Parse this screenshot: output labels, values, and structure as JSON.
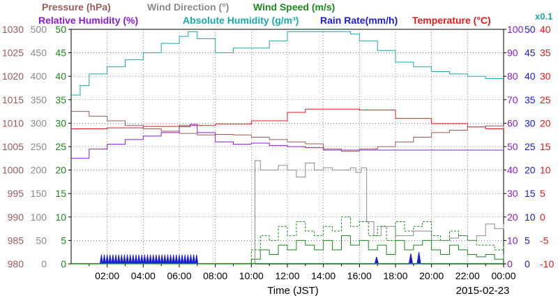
{
  "chart_data": {
    "type": "line",
    "date": "2015-02-23",
    "xlabel": "Time (JST)",
    "x_ticks": [
      "02:00",
      "04:00",
      "06:00",
      "08:00",
      "10:00",
      "12:00",
      "14:00",
      "16:00",
      "18:00",
      "20:00",
      "22:00",
      "00:00"
    ],
    "xlim_hours": [
      0,
      24
    ],
    "grid": true,
    "multiplier_note": "x0.1",
    "legend": [
      {
        "label": "Pressure (hPa)",
        "color": "#9b5a5a"
      },
      {
        "label": "Wind Direction (°)",
        "color": "#8a8a8a"
      },
      {
        "label": "Wind Speed (m/s)",
        "color": "#1a8a1a"
      },
      {
        "label": "Relative Humidity (%)",
        "color": "#8a1ad8"
      },
      {
        "label": "Absolute Humidity (g/m³)",
        "color": "#1aa8a8"
      },
      {
        "label": "Rain Rate(mm/h)",
        "color": "#1a1ad8"
      },
      {
        "label": "Temperature (°C)",
        "color": "#e01a1a"
      }
    ],
    "axes": {
      "pressure": {
        "color": "#9b5a5a",
        "range": [
          980,
          1030
        ],
        "ticks": [
          "1030",
          "1025",
          "1020",
          "1015",
          "1010",
          "1005",
          "1000",
          "995",
          "990",
          "985",
          "980"
        ]
      },
      "direction": {
        "color": "#8a8a8a",
        "range": [
          0,
          500
        ],
        "ticks": [
          "500",
          "450",
          "400",
          "350",
          "300",
          "250",
          "200",
          "150",
          "100",
          "50",
          "0"
        ]
      },
      "speed": {
        "color": "#1a8a1a",
        "range": [
          0,
          50
        ],
        "ticks": [
          "50",
          "45",
          "40",
          "35",
          "30",
          "25",
          "20",
          "15",
          "10",
          "5",
          "0"
        ]
      },
      "rel_humidity": {
        "color": "#8a1ad8",
        "range": [
          0,
          100
        ],
        "ticks": [
          "100",
          "90",
          "80",
          "70",
          "60",
          "50",
          "40",
          "30",
          "20",
          "10",
          "0"
        ]
      },
      "rain": {
        "color": "#1a1ad8",
        "range": [
          0,
          50
        ],
        "ticks": [
          "50",
          "45",
          "40",
          "35",
          "30",
          "25",
          "20",
          "15",
          "10",
          "5",
          "0"
        ]
      },
      "temperature": {
        "color": "#e01a1a",
        "range": [
          -10,
          40
        ],
        "ticks": [
          "40",
          "35",
          "30",
          "25",
          "20",
          "15",
          "10",
          "5",
          "0",
          "-5",
          "-10"
        ]
      }
    },
    "series": [
      {
        "name": "Absolute Humidity (g/m³)",
        "axis": "speed",
        "color": "#1aa8a8",
        "x": [
          0,
          0.5,
          1,
          2,
          3,
          4,
          5,
          6,
          6.5,
          7,
          8,
          9,
          10,
          11,
          12,
          13,
          14,
          15,
          15.5,
          16,
          17,
          18,
          19,
          20,
          21,
          22,
          23,
          24
        ],
        "y": [
          36,
          38,
          40.5,
          42,
          43.5,
          45,
          47,
          48.5,
          49.5,
          48,
          45,
          46,
          46,
          47.5,
          49.5,
          49.5,
          49.5,
          49.5,
          49,
          47.5,
          45.5,
          43,
          42,
          41,
          40.5,
          40,
          39.5,
          39.5
        ]
      },
      {
        "name": "Temperature (°C)",
        "axis": "temperature",
        "color": "#e01a1a",
        "x": [
          0,
          2,
          4,
          6,
          8,
          10,
          12,
          13,
          14,
          15,
          16,
          18,
          20,
          22,
          23,
          24
        ],
        "y": [
          18.8,
          19,
          19.3,
          19.5,
          19.8,
          20.5,
          22.3,
          23,
          23,
          23,
          22.8,
          21,
          19.9,
          19.2,
          18.8,
          19
        ]
      },
      {
        "name": "Pressure (hPa)",
        "axis": "pressure",
        "color": "#9b5a5a",
        "x": [
          0,
          1,
          2,
          3,
          4,
          5,
          6,
          7,
          8,
          9,
          10,
          11,
          12,
          13,
          14,
          15,
          16,
          17,
          18,
          19,
          20,
          21,
          22,
          23,
          24
        ],
        "y": [
          1012.5,
          1011.5,
          1010.5,
          1009.5,
          1008.8,
          1008.3,
          1007.8,
          1007.5,
          1007.6,
          1007.5,
          1007.0,
          1006.5,
          1006.0,
          1005.6,
          1004.5,
          1004.0,
          1004.5,
          1005.0,
          1006.0,
          1007.0,
          1008.0,
          1008.5,
          1009.2,
          1009.4,
          1009.0
        ]
      },
      {
        "name": "Relative Humidity (%)",
        "axis": "rel_humidity",
        "color": "#8a1ad8",
        "x": [
          0,
          1,
          2,
          3,
          4,
          5,
          6,
          6.6,
          7,
          8,
          9,
          10,
          11,
          12,
          13,
          14,
          15,
          16,
          17,
          18,
          19,
          20,
          21,
          22,
          23,
          24
        ],
        "y": [
          45,
          49,
          51,
          53,
          54.5,
          56,
          58.5,
          59.5,
          56,
          52,
          51,
          51.5,
          50.5,
          50,
          49.5,
          48.5,
          48.5,
          48.5,
          48.5,
          48.5,
          48.5,
          48.5,
          48.5,
          48.5,
          48.5,
          48.5
        ]
      },
      {
        "name": "Wind Direction (°)",
        "axis": "direction",
        "color": "#8a8a8a",
        "x": [
          9.9,
          10.2,
          10.5,
          11,
          11.5,
          12,
          12.5,
          13,
          13.5,
          14,
          14.5,
          15,
          15.5,
          15.8,
          16.1,
          16.4,
          16.8,
          17.2,
          18,
          19,
          20,
          21,
          21.5,
          22,
          22.5,
          23,
          23.5,
          24
        ],
        "y": [
          0,
          220,
          200,
          200,
          210,
          200,
          185,
          215,
          200,
          205,
          200,
          200,
          205,
          195,
          205,
          90,
          60,
          80,
          60,
          70,
          50,
          55,
          60,
          50,
          60,
          85,
          75,
          85
        ]
      },
      {
        "name": "Wind Speed (m/s)",
        "axis": "speed",
        "color": "#1a8a1a",
        "x": [
          0,
          8,
          9.8,
          10,
          10.5,
          11,
          11.5,
          12,
          12.5,
          13,
          13.5,
          14,
          14.5,
          15,
          15.5,
          16,
          16.5,
          17,
          17.5,
          18,
          18.5,
          19,
          19.5,
          20,
          20.5,
          21,
          21.5,
          22,
          22.5,
          23,
          23.5,
          24
        ],
        "y": [
          0,
          0,
          0,
          1,
          3,
          2,
          4,
          3,
          5,
          4,
          3,
          5,
          3,
          6,
          4,
          5,
          3,
          4,
          2,
          5,
          3,
          4,
          5,
          3,
          2,
          4,
          3,
          2,
          1.5,
          2,
          1,
          2
        ]
      },
      {
        "name": "Wind Speed gust",
        "axis": "speed",
        "color": "#1a8a1a",
        "x": [
          9.8,
          10,
          10.5,
          11,
          11.5,
          12,
          12.5,
          13,
          13.5,
          14,
          14.5,
          15,
          15.5,
          16,
          16.5,
          17,
          17.5,
          18,
          18.5,
          19,
          19.5,
          20,
          20.5,
          21,
          21.5,
          22,
          22.5,
          23,
          23.5,
          24
        ],
        "y": [
          0,
          3,
          6,
          5,
          8,
          6,
          9,
          7,
          6,
          8,
          7,
          10,
          8,
          9,
          6,
          8,
          5,
          9,
          7,
          8,
          9,
          6,
          5,
          7,
          6,
          5,
          4,
          4,
          3,
          4
        ]
      }
    ],
    "rain_events": [
      {
        "start": 1.6,
        "end": 6.9,
        "value": 2,
        "pattern": "dense"
      },
      {
        "start": 16.85,
        "end": 17.05,
        "value": 1.5
      },
      {
        "start": 18.75,
        "end": 18.95,
        "value": 2.2
      },
      {
        "start": 19.2,
        "end": 19.4,
        "value": 2.5
      }
    ]
  }
}
